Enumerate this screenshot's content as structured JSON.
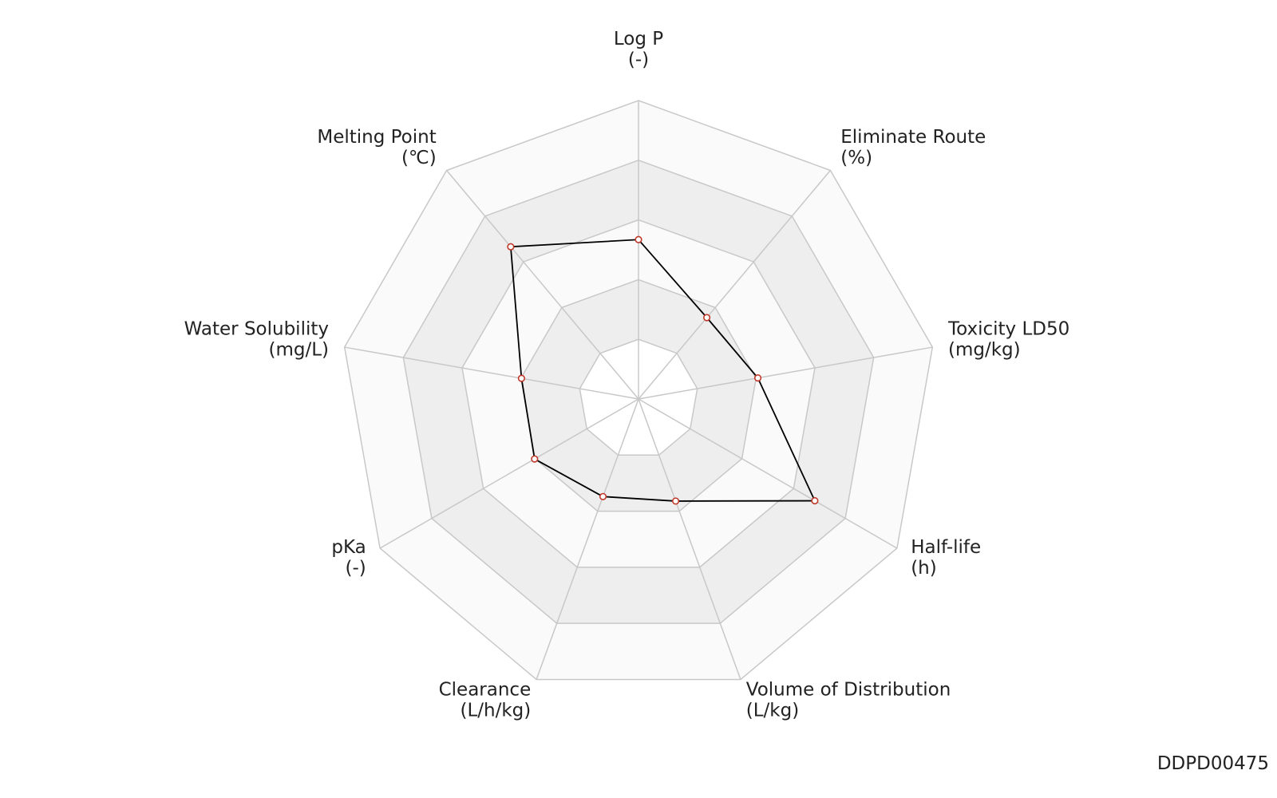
{
  "chart_data": {
    "type": "radar",
    "categories": [
      "Log P",
      "Eliminate Route",
      "Toxicity LD50",
      "Half-life",
      "Volume of Distribution",
      "Clearance",
      "pKa",
      "Water Solubility",
      "Melting Point"
    ],
    "units": [
      "(-)",
      "(%)",
      "(mg/kg)",
      "(h)",
      "(L/kg)",
      "(L/h/kg)",
      "(-)",
      "(mg/L)",
      "(℃)"
    ],
    "values": [
      2.67,
      1.78,
      2.03,
      3.41,
      1.82,
      1.74,
      2.01,
      1.99,
      3.33
    ],
    "color": "#000000",
    "marker_color": "#c0392b",
    "rlim": [
      0,
      5
    ],
    "rticks": [
      1,
      2,
      3,
      4,
      5
    ],
    "band_colors": [
      "#ffffff",
      "#eeeeee",
      "#fafafa",
      "#eeeeee",
      "#fafafa"
    ],
    "footer": "DDPD00475"
  }
}
